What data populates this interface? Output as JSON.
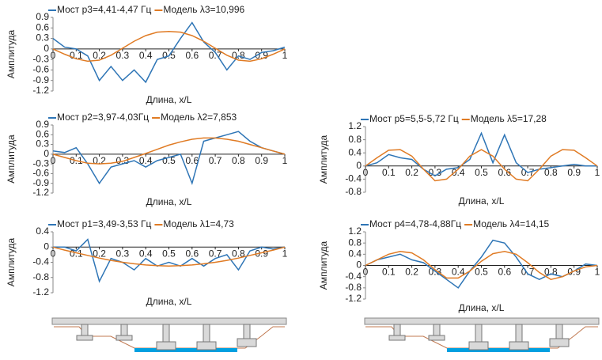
{
  "chart_data": [
    {
      "type": "line",
      "xlabel": "Длина, x/L",
      "ylabel": "Амплитуда",
      "x": [
        0,
        0.05,
        0.1,
        0.15,
        0.2,
        0.25,
        0.3,
        0.35,
        0.4,
        0.45,
        0.5,
        0.55,
        0.6,
        0.65,
        0.7,
        0.75,
        0.8,
        0.85,
        0.9,
        0.95,
        1
      ],
      "xlim": [
        0,
        1
      ],
      "xticks": [
        0,
        0.1,
        0.2,
        0.3,
        0.4,
        0.5,
        0.6,
        0.7,
        0.8,
        0.9,
        1
      ],
      "ylim": [
        -1.2,
        0.9
      ],
      "yticks": [
        0.9,
        0.6,
        0.3,
        0,
        -0.3,
        -0.6,
        -0.9,
        -1.2
      ],
      "series": [
        {
          "name": "Мост p3=4,41-4,47 Гц",
          "color": "#2e75b6",
          "values": [
            0.3,
            0.05,
            0,
            -0.2,
            -0.9,
            -0.5,
            -0.9,
            -0.6,
            -0.95,
            -0.3,
            -0.2,
            0.3,
            0.75,
            0.2,
            -0.1,
            -0.6,
            -0.2,
            -0.3,
            -0.1,
            -0.05,
            0.05
          ]
        },
        {
          "name": "Модель λ3=10,996",
          "color": "#e07b24",
          "values": [
            0,
            -0.15,
            -0.28,
            -0.35,
            -0.32,
            -0.18,
            0.02,
            0.22,
            0.38,
            0.48,
            0.5,
            0.48,
            0.38,
            0.22,
            0.02,
            -0.18,
            -0.32,
            -0.35,
            -0.28,
            -0.15,
            0
          ]
        }
      ]
    },
    {
      "type": "line",
      "xlabel": "Длина, x/L",
      "ylabel": "Амплитуда",
      "x": [
        0,
        0.05,
        0.1,
        0.15,
        0.2,
        0.25,
        0.3,
        0.35,
        0.4,
        0.45,
        0.5,
        0.55,
        0.6,
        0.65,
        0.7,
        0.75,
        0.8,
        0.85,
        0.9,
        0.95,
        1
      ],
      "xlim": [
        0,
        1
      ],
      "xticks": [
        0,
        0.1,
        0.2,
        0.3,
        0.4,
        0.5,
        0.6,
        0.7,
        0.8,
        0.9,
        1
      ],
      "ylim": [
        -1.2,
        0.9
      ],
      "yticks": [
        0.9,
        0.6,
        0.3,
        0,
        -0.3,
        -0.6,
        -0.9,
        -1.2
      ],
      "series": [
        {
          "name": "Мост p2=3,97-4,03Гц",
          "color": "#2e75b6",
          "values": [
            0.1,
            0.05,
            0.2,
            -0.3,
            -0.9,
            -0.4,
            -0.3,
            -0.2,
            -0.4,
            -0.2,
            -0.1,
            0,
            -0.9,
            0.4,
            0.5,
            0.6,
            0.7,
            0.4,
            0.2,
            0.1,
            0
          ]
        },
        {
          "name": "Модель λ2=7,853",
          "color": "#e07b24",
          "values": [
            0,
            -0.1,
            -0.2,
            -0.28,
            -0.3,
            -0.28,
            -0.22,
            -0.1,
            0.02,
            0.15,
            0.28,
            0.38,
            0.46,
            0.5,
            0.5,
            0.46,
            0.4,
            0.3,
            0.2,
            0.1,
            0
          ]
        }
      ]
    },
    {
      "type": "line",
      "xlabel": "Длина, x/L",
      "ylabel": "Амплитуда",
      "x": [
        0,
        0.05,
        0.1,
        0.15,
        0.2,
        0.25,
        0.3,
        0.35,
        0.4,
        0.45,
        0.5,
        0.55,
        0.6,
        0.65,
        0.7,
        0.75,
        0.8,
        0.85,
        0.9,
        0.95,
        1
      ],
      "xlim": [
        0,
        1
      ],
      "xticks": [
        0,
        0.1,
        0.2,
        0.3,
        0.4,
        0.5,
        0.6,
        0.7,
        0.8,
        0.9,
        1
      ],
      "ylim": [
        -1.2,
        0.4
      ],
      "yticks": [
        0.4,
        0,
        -0.4,
        -0.8,
        -1.2
      ],
      "series": [
        {
          "name": "Мост p1=3,49-3,53 Гц",
          "color": "#2e75b6",
          "values": [
            0,
            0,
            -0.1,
            0.2,
            -0.9,
            -0.3,
            -0.4,
            -0.6,
            -0.3,
            -0.5,
            -0.4,
            -0.5,
            -0.3,
            -0.5,
            -0.3,
            -0.2,
            -0.6,
            -0.1,
            0,
            -0.05,
            0
          ]
        },
        {
          "name": "Модель λ1=4,73",
          "color": "#e07b24",
          "values": [
            0,
            -0.08,
            -0.15,
            -0.22,
            -0.29,
            -0.35,
            -0.4,
            -0.44,
            -0.47,
            -0.49,
            -0.5,
            -0.49,
            -0.47,
            -0.44,
            -0.4,
            -0.35,
            -0.29,
            -0.22,
            -0.15,
            -0.08,
            0
          ]
        }
      ]
    },
    {
      "type": "line",
      "xlabel": "Длина, x/L",
      "ylabel": "Амплитуда",
      "x": [
        0,
        0.05,
        0.1,
        0.15,
        0.2,
        0.25,
        0.3,
        0.35,
        0.4,
        0.45,
        0.5,
        0.55,
        0.6,
        0.65,
        0.7,
        0.75,
        0.8,
        0.85,
        0.9,
        0.95,
        1
      ],
      "xlim": [
        0,
        1
      ],
      "xticks": [
        0,
        0.1,
        0.2,
        0.3,
        0.4,
        0.5,
        0.6,
        0.7,
        0.8,
        0.9,
        1
      ],
      "ylim": [
        -0.8,
        1.2
      ],
      "yticks": [
        1.2,
        0.8,
        0.4,
        0,
        -0.4,
        -0.8
      ],
      "series": [
        {
          "name": "Мост p5=5,5-5,72 Гц",
          "color": "#2e75b6",
          "values": [
            0,
            0.1,
            0.35,
            0.25,
            0.2,
            -0.1,
            -0.3,
            -0.1,
            -0.05,
            0.2,
            1.0,
            0.1,
            0.95,
            0.1,
            -0.2,
            -0.1,
            -0.05,
            0,
            0.05,
            0,
            0
          ]
        },
        {
          "name": "Модель λ5=17,28",
          "color": "#e07b24",
          "values": [
            0,
            0.25,
            0.48,
            0.5,
            0.3,
            -0.1,
            -0.45,
            -0.4,
            -0.1,
            0.3,
            0.5,
            0.3,
            -0.1,
            -0.4,
            -0.45,
            -0.1,
            0.3,
            0.5,
            0.48,
            0.25,
            0
          ]
        }
      ]
    },
    {
      "type": "line",
      "xlabel": "Длина, x/L",
      "ylabel": "Амплитуда",
      "x": [
        0,
        0.05,
        0.1,
        0.15,
        0.2,
        0.25,
        0.3,
        0.35,
        0.4,
        0.45,
        0.5,
        0.55,
        0.6,
        0.65,
        0.7,
        0.75,
        0.8,
        0.85,
        0.9,
        0.95,
        1
      ],
      "xlim": [
        0,
        1
      ],
      "xticks": [
        0,
        0.1,
        0.2,
        0.3,
        0.4,
        0.5,
        0.6,
        0.7,
        0.8,
        0.9,
        1
      ],
      "ylim": [
        -1.2,
        1.2
      ],
      "yticks": [
        1.2,
        0.8,
        0.4,
        0,
        -0.4,
        -0.8,
        -1.2
      ],
      "series": [
        {
          "name": "Мост p4=4,78-4,88Гц",
          "color": "#2e75b6",
          "values": [
            0,
            0.2,
            0.3,
            0.4,
            0.2,
            0.1,
            -0.2,
            -0.5,
            -0.8,
            -0.2,
            0.3,
            0.9,
            0.8,
            0.3,
            -0.3,
            -0.5,
            -0.3,
            -0.4,
            -0.2,
            0.05,
            0
          ]
        },
        {
          "name": "Модель λ4=14,15",
          "color": "#e07b24",
          "values": [
            0,
            0.2,
            0.4,
            0.5,
            0.45,
            0.2,
            -0.15,
            -0.45,
            -0.45,
            -0.2,
            0.15,
            0.42,
            0.5,
            0.4,
            0.1,
            -0.25,
            -0.5,
            -0.4,
            -0.2,
            -0.05,
            0
          ]
        }
      ]
    }
  ]
}
